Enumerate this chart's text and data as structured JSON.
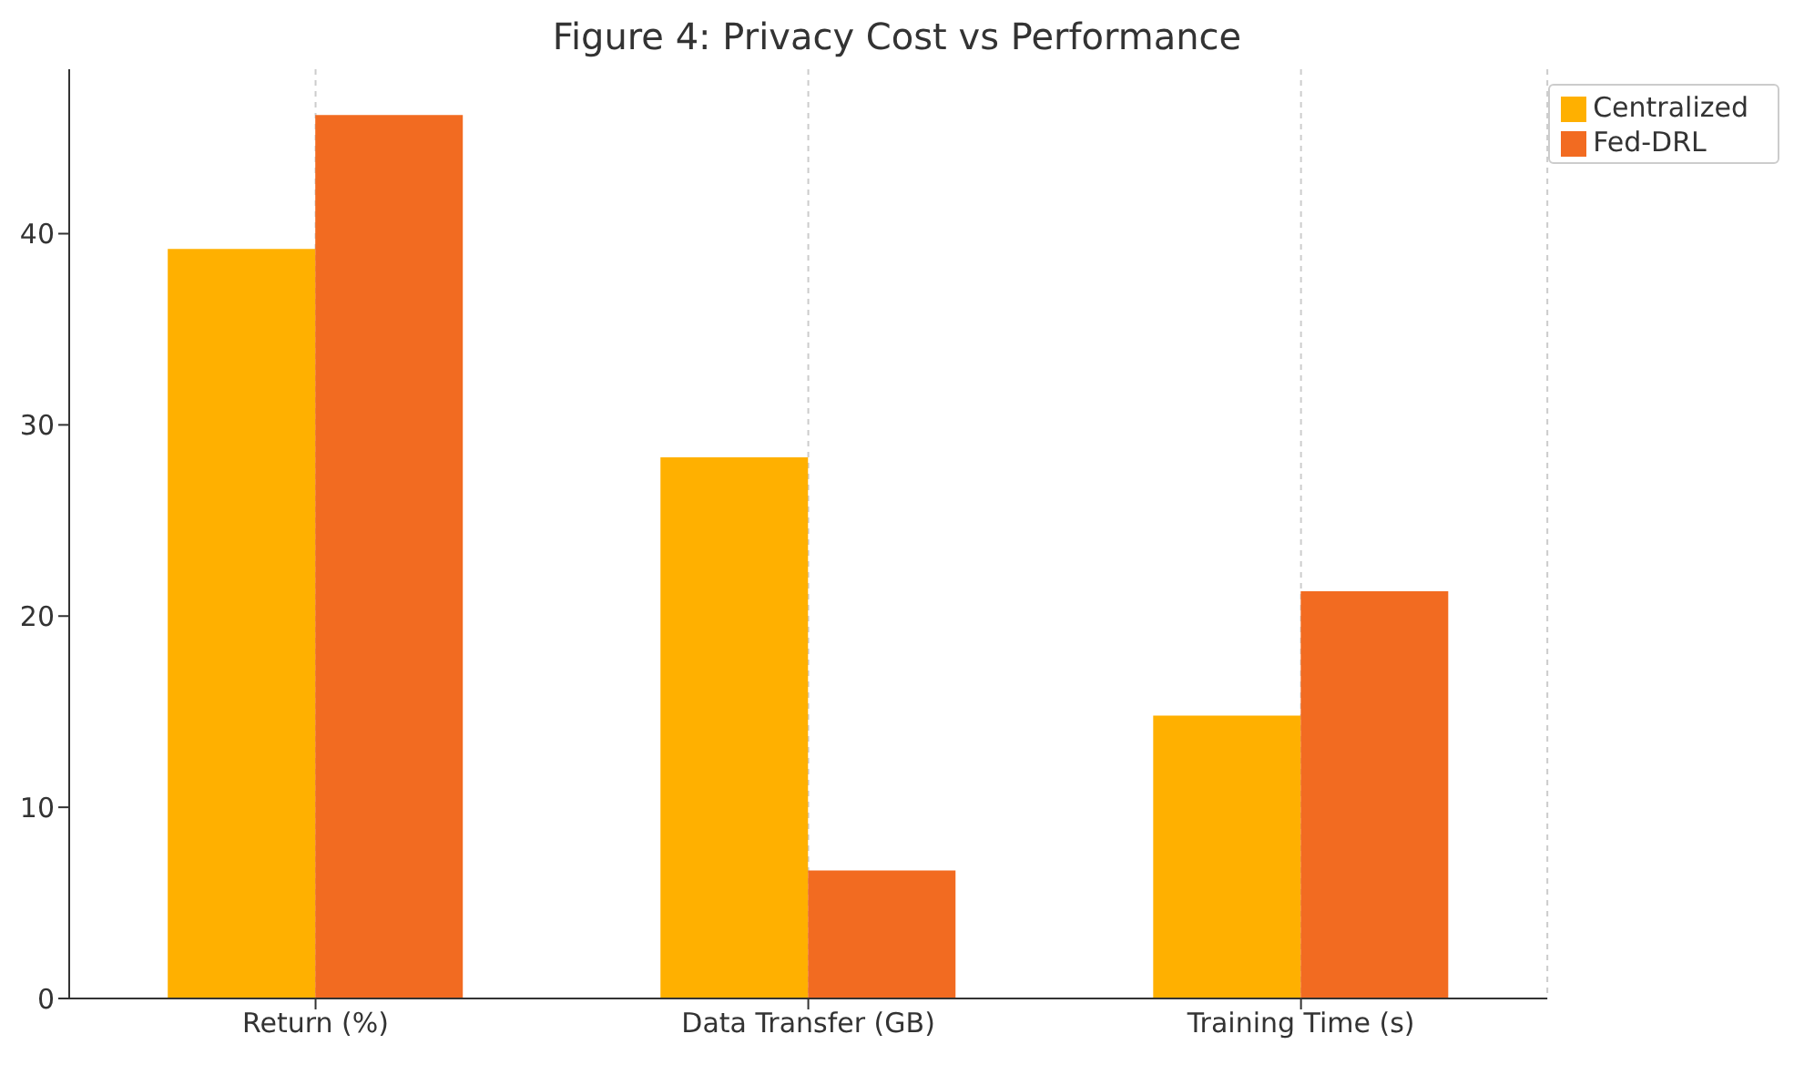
{
  "chart_data": {
    "type": "bar",
    "title": "Figure 4: Privacy Cost vs Performance",
    "categories": [
      "Return (%)",
      "Data Transfer (GB)",
      "Training Time (s)"
    ],
    "series": [
      {
        "name": "Centralized",
        "color": "#ffb000",
        "values": [
          39.2,
          28.3,
          14.8
        ]
      },
      {
        "name": "Fed-DRL",
        "color": "#f26b21",
        "values": [
          46.2,
          6.7,
          21.3
        ]
      }
    ],
    "ylim": [
      0,
      48.6
    ],
    "yticks": [
      0,
      10,
      20,
      30,
      40
    ],
    "grid": "x",
    "legend": "top right"
  }
}
